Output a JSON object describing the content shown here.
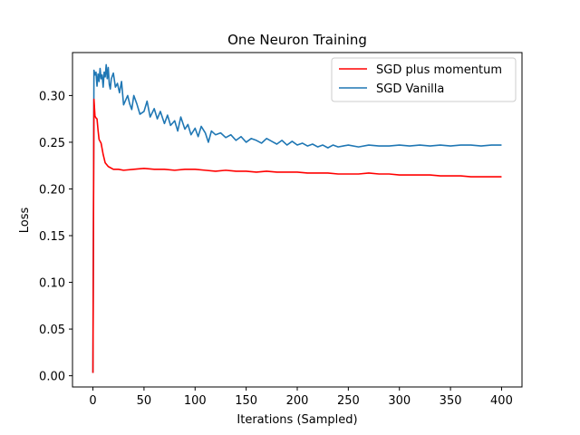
{
  "chart_data": {
    "type": "line",
    "title": "One Neuron Training",
    "xlabel": "Iterations (Sampled)",
    "ylabel": "Loss",
    "xlim": [
      -20,
      420
    ],
    "ylim": [
      -0.012,
      0.346
    ],
    "xticks": [
      0,
      50,
      100,
      150,
      200,
      250,
      300,
      350,
      400
    ],
    "yticks": [
      0.0,
      0.05,
      0.1,
      0.15,
      0.2,
      0.25,
      0.3
    ],
    "xtick_labels": [
      "0",
      "50",
      "100",
      "150",
      "200",
      "250",
      "300",
      "350",
      "400"
    ],
    "ytick_labels": [
      "0.00",
      "0.05",
      "0.10",
      "0.15",
      "0.20",
      "0.25",
      "0.30"
    ],
    "grid": false,
    "legend_position": "top-right",
    "series": [
      {
        "name": "SGD plus momentum",
        "color": "#ff0000",
        "x": [
          0,
          1,
          2,
          3,
          4,
          5,
          6,
          8,
          10,
          12,
          15,
          20,
          25,
          30,
          40,
          50,
          60,
          70,
          80,
          90,
          100,
          110,
          120,
          130,
          140,
          150,
          160,
          170,
          180,
          190,
          200,
          210,
          220,
          230,
          240,
          250,
          260,
          270,
          280,
          290,
          300,
          310,
          320,
          330,
          340,
          350,
          360,
          370,
          380,
          390,
          400
        ],
        "values": [
          0.003,
          0.296,
          0.278,
          0.276,
          0.275,
          0.263,
          0.253,
          0.249,
          0.237,
          0.228,
          0.224,
          0.221,
          0.221,
          0.22,
          0.221,
          0.222,
          0.221,
          0.221,
          0.22,
          0.221,
          0.221,
          0.22,
          0.219,
          0.22,
          0.219,
          0.219,
          0.218,
          0.219,
          0.218,
          0.218,
          0.218,
          0.217,
          0.217,
          0.217,
          0.216,
          0.216,
          0.216,
          0.217,
          0.216,
          0.216,
          0.215,
          0.215,
          0.215,
          0.215,
          0.214,
          0.214,
          0.214,
          0.213,
          0.213,
          0.213,
          0.213
        ]
      },
      {
        "name": "SGD Vanilla",
        "color": "#1f77b4",
        "x": [
          0,
          1,
          2,
          3,
          4,
          5,
          6,
          7,
          8,
          9,
          10,
          11,
          12,
          13,
          14,
          15,
          16,
          17,
          18,
          20,
          22,
          24,
          26,
          28,
          30,
          32,
          34,
          36,
          38,
          40,
          43,
          46,
          50,
          53,
          56,
          60,
          63,
          66,
          70,
          73,
          76,
          80,
          83,
          86,
          90,
          93,
          96,
          100,
          103,
          106,
          110,
          113,
          116,
          120,
          125,
          130,
          135,
          140,
          145,
          150,
          155,
          160,
          165,
          170,
          175,
          180,
          185,
          190,
          195,
          200,
          205,
          210,
          215,
          220,
          225,
          230,
          235,
          240,
          245,
          250,
          260,
          270,
          280,
          290,
          300,
          310,
          320,
          330,
          340,
          350,
          360,
          370,
          380,
          390,
          400
        ],
        "values": [
          0.003,
          0.327,
          0.322,
          0.325,
          0.31,
          0.323,
          0.315,
          0.329,
          0.318,
          0.322,
          0.309,
          0.325,
          0.32,
          0.333,
          0.318,
          0.33,
          0.312,
          0.307,
          0.318,
          0.324,
          0.309,
          0.313,
          0.303,
          0.315,
          0.29,
          0.295,
          0.3,
          0.291,
          0.285,
          0.3,
          0.291,
          0.28,
          0.283,
          0.294,
          0.277,
          0.286,
          0.275,
          0.283,
          0.27,
          0.279,
          0.268,
          0.273,
          0.262,
          0.277,
          0.264,
          0.269,
          0.258,
          0.265,
          0.256,
          0.267,
          0.26,
          0.25,
          0.262,
          0.258,
          0.26,
          0.255,
          0.258,
          0.252,
          0.256,
          0.25,
          0.254,
          0.252,
          0.249,
          0.254,
          0.251,
          0.248,
          0.252,
          0.247,
          0.251,
          0.247,
          0.249,
          0.246,
          0.248,
          0.245,
          0.247,
          0.244,
          0.247,
          0.245,
          0.246,
          0.247,
          0.245,
          0.247,
          0.246,
          0.246,
          0.247,
          0.246,
          0.247,
          0.246,
          0.247,
          0.246,
          0.247,
          0.247,
          0.246,
          0.247,
          0.247
        ]
      }
    ]
  }
}
